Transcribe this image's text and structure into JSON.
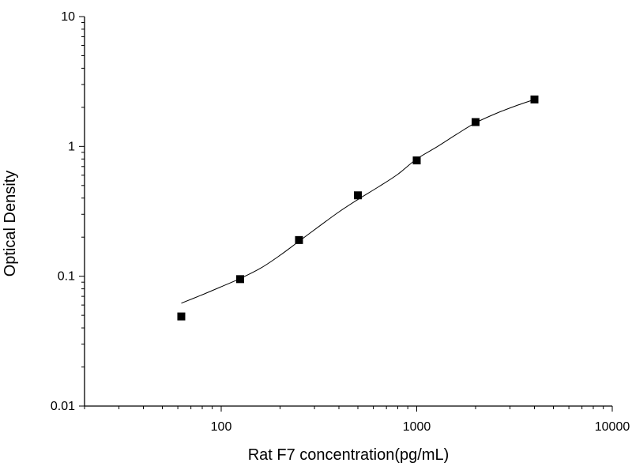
{
  "chart_data": {
    "type": "scatter",
    "title": "",
    "xlabel": "Rat F7 concentration(pg/mL)",
    "ylabel": "Optical Density",
    "x_scale": "log",
    "y_scale": "log",
    "xlim": [
      20,
      10000
    ],
    "ylim": [
      0.01,
      10
    ],
    "x_ticks": [
      100,
      1000,
      10000
    ],
    "x_tick_labels": [
      "100",
      "1000",
      "10000"
    ],
    "y_ticks": [
      0.01,
      0.1,
      1,
      10
    ],
    "y_tick_labels": [
      "0.01",
      "0.1",
      "1",
      "10"
    ],
    "grid": false,
    "legend": "none",
    "marker": "square",
    "marker_color": "#000000",
    "line_color": "#000000",
    "series": [
      {
        "x": [
          62.5,
          125,
          250,
          500,
          1000,
          2000,
          4000
        ],
        "y": [
          0.049,
          0.095,
          0.19,
          0.42,
          0.78,
          1.54,
          2.3
        ]
      }
    ],
    "fit_curve": {
      "x": [
        62.5,
        80,
        100,
        125,
        160,
        200,
        250,
        320,
        400,
        500,
        640,
        800,
        1000,
        1280,
        1600,
        2000,
        2560,
        3200,
        4000
      ],
      "y": [
        0.062,
        0.072,
        0.083,
        0.096,
        0.116,
        0.145,
        0.186,
        0.245,
        0.313,
        0.39,
        0.49,
        0.61,
        0.8,
        1.0,
        1.24,
        1.52,
        1.8,
        2.05,
        2.3
      ]
    }
  }
}
